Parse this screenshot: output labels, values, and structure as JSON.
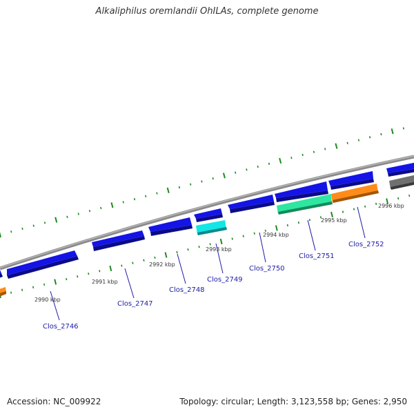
{
  "title": "Alkaliphilus oremlandii OhILAs, complete genome",
  "footer": {
    "accession": "Accession: NC_009922",
    "meta": "Topology: circular; Length: 3,123,558 bp; Genes: 2,950"
  },
  "colors": {
    "blue_gene": "#1414e6",
    "cyan_gene": "#12e6e6",
    "green_gene": "#2ee6a0",
    "orange_gene": "#ff8c1a",
    "gray_gene": "#707070",
    "backbone": "#8a8a8a",
    "ticks": "#1c8a1c",
    "label": "#1a1aa8"
  },
  "kbp_labels": [
    "2990 kbp",
    "2991 kbp",
    "2992 kbp",
    "2993 kbp",
    "2994 kbp",
    "2995 kbp",
    "2996 kbp"
  ],
  "gene_labels": [
    "Clos_2746",
    "Clos_2747",
    "Clos_2748",
    "Clos_2749",
    "Clos_2750",
    "Clos_2751",
    "Clos_2752"
  ]
}
